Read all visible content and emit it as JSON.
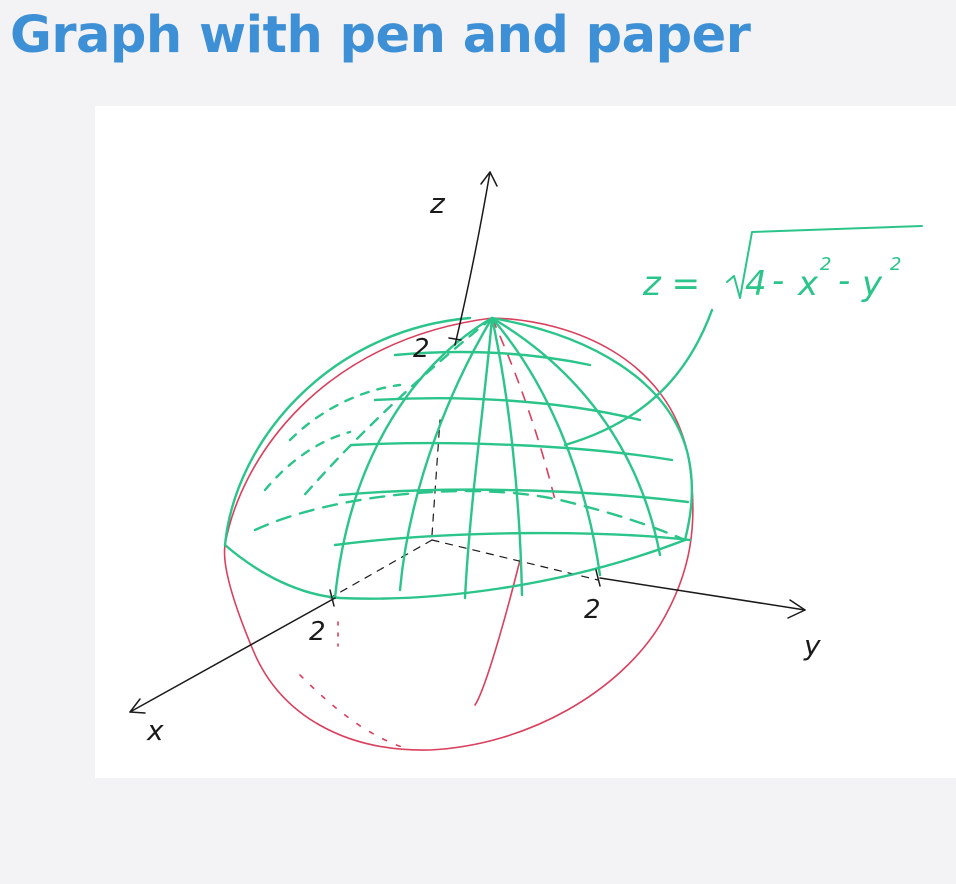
{
  "title": "Graph with pen and paper",
  "colors": {
    "title": "#3d8fd6",
    "ink": "#1a1a1a",
    "hemisphere": "#2bc48a",
    "sphere": "#d9405e",
    "paper": "#ffffff",
    "background": "#f3f3f6"
  },
  "diagram": {
    "equation": {
      "lhs": "z =",
      "radicand_const": "4",
      "op1": "-",
      "var1": "x",
      "op2": "-",
      "var2": "y",
      "exponent": "2"
    },
    "axis_labels": {
      "x": "x",
      "y": "y",
      "z": "z"
    },
    "tick_labels": {
      "x_tick": "2",
      "y_tick": "2",
      "z_tick": "2"
    }
  }
}
